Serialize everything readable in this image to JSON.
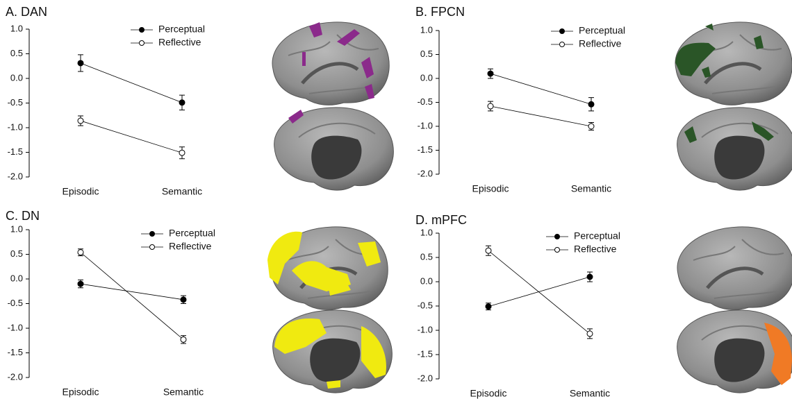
{
  "chart_data": [
    {
      "type": "line",
      "title": "A. DAN",
      "categories": [
        "Episodic",
        "Semantic"
      ],
      "series": [
        {
          "name": "Perceptual",
          "color": "#000000",
          "fill": "#000000",
          "values": [
            0.31,
            -0.49
          ],
          "errors": [
            0.17,
            0.15
          ]
        },
        {
          "name": "Reflective",
          "color": "#000000",
          "fill": "#ffffff",
          "values": [
            -0.86,
            -1.51
          ],
          "errors": [
            0.1,
            0.12
          ]
        }
      ],
      "ylim": [
        -2,
        1
      ],
      "yticks": [
        {
          "value": 1,
          "label": "1.0"
        },
        0.5,
        {
          "value": 0,
          "label": "0.0"
        },
        -0.5,
        {
          "value": -1,
          "label": "-1.0"
        },
        -1.5,
        {
          "value": -2,
          "label": "-2.0"
        }
      ]
    },
    {
      "type": "line",
      "title": "B. FPCN",
      "categories": [
        "Episodic",
        "Semantic"
      ],
      "series": [
        {
          "name": "Perceptual",
          "color": "#000000",
          "fill": "#000000",
          "values": [
            0.1,
            -0.54
          ],
          "errors": [
            0.1,
            0.14
          ]
        },
        {
          "name": "Reflective",
          "color": "#000000",
          "fill": "#ffffff",
          "values": [
            -0.58,
            -1.0
          ],
          "errors": [
            0.1,
            0.08
          ]
        }
      ],
      "ylim": [
        -2,
        1
      ],
      "yticks": [
        {
          "value": 1,
          "label": "1.0"
        },
        0.5,
        {
          "value": 0,
          "label": "0.0"
        },
        -0.5,
        {
          "value": -1,
          "label": "-1.0"
        },
        -1.5,
        {
          "value": -2,
          "label": "-2.0"
        }
      ]
    },
    {
      "type": "line",
      "title": "C. DN",
      "categories": [
        "Episodic",
        "Semantic"
      ],
      "series": [
        {
          "name": "Perceptual",
          "color": "#000000",
          "fill": "#000000",
          "values": [
            -0.1,
            -0.42
          ],
          "errors": [
            0.08,
            0.08
          ]
        },
        {
          "name": "Reflective",
          "color": "#000000",
          "fill": "#ffffff",
          "values": [
            0.54,
            -1.23
          ],
          "errors": [
            0.07,
            0.08
          ]
        }
      ],
      "ylim": [
        -2,
        1
      ],
      "yticks": [
        {
          "value": 1,
          "label": "1.0"
        },
        0.5,
        {
          "value": 0,
          "label": "0.0"
        },
        -0.5,
        {
          "value": -1,
          "label": "-1.0"
        },
        -1.5,
        {
          "value": -2,
          "label": "-2.0"
        }
      ]
    },
    {
      "type": "line",
      "title": "D. mPFC",
      "categories": [
        "Episodic",
        "Semantic"
      ],
      "series": [
        {
          "name": "Perceptual",
          "color": "#000000",
          "fill": "#000000",
          "values": [
            -0.51,
            0.1
          ],
          "errors": [
            0.07,
            0.1
          ]
        },
        {
          "name": "Reflective",
          "color": "#000000",
          "fill": "#ffffff",
          "values": [
            0.64,
            -1.07
          ],
          "errors": [
            0.1,
            0.1
          ]
        }
      ],
      "ylim": [
        -2,
        1
      ],
      "yticks": [
        {
          "value": 1,
          "label": "1.0"
        },
        0.5,
        {
          "value": 0,
          "label": "0.0"
        },
        -0.5,
        {
          "value": -1,
          "label": "-1.0"
        },
        -1.5,
        {
          "value": -2,
          "label": "-2.0"
        }
      ]
    }
  ]
}
